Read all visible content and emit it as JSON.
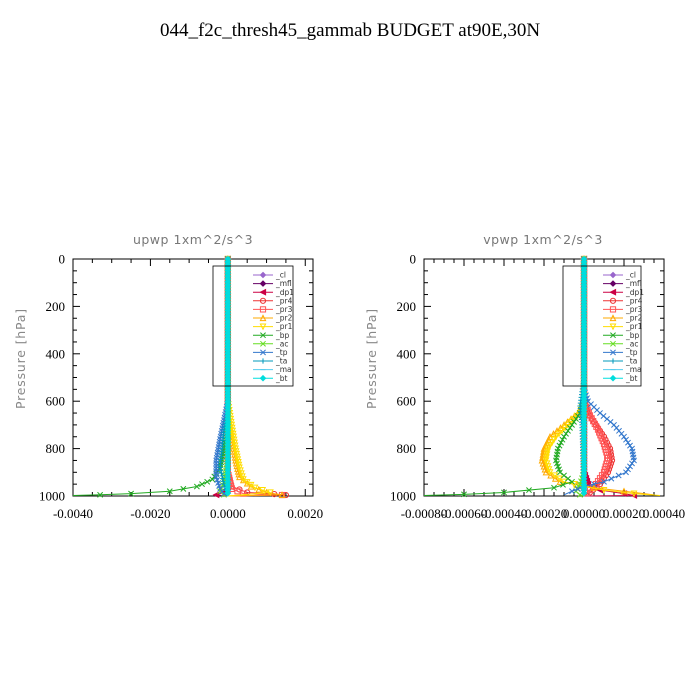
{
  "page": {
    "title": "044_f2c_thresh45_gammab  BUDGET at90E,30N"
  },
  "chart_data": [
    {
      "type": "line",
      "title": "upwp   1xm^2/s^3",
      "ylabel": "Pressure  [hPa]",
      "xlabel": "",
      "xlim": [
        -0.004,
        0.0022
      ],
      "ylim": [
        1000,
        0
      ],
      "xticks": [
        -0.004,
        -0.002,
        0.0,
        0.002
      ],
      "xtick_labels": [
        "-0.0040",
        "-0.0020",
        "0.0000",
        "0.0020"
      ],
      "yticks": [
        0,
        200,
        400,
        600,
        800,
        1000
      ],
      "ytick_labels": [
        "0",
        "200",
        "400",
        "600",
        "800",
        "1000"
      ],
      "legend_position": "top-right",
      "series": [
        {
          "name": "_cl",
          "color": "#9966cc",
          "marker": "diamond",
          "points": [
            [
              0,
              0
            ],
            [
              0,
              600
            ],
            [
              0,
              900
            ],
            [
              0,
              1000
            ]
          ]
        },
        {
          "name": "_mfl",
          "color": "#660066",
          "marker": "diamond",
          "points": [
            [
              0,
              0
            ],
            [
              0,
              600
            ],
            [
              0,
              900
            ],
            [
              0,
              1000
            ]
          ]
        },
        {
          "name": "_dp1",
          "color": "#cc0044",
          "marker": "triangle-left",
          "points": [
            [
              0,
              0
            ],
            [
              0,
              900
            ],
            [
              0,
              960
            ],
            [
              -0.0001,
              985
            ],
            [
              -0.0003,
              995
            ],
            [
              0,
              1000
            ]
          ]
        },
        {
          "name": "_pr4",
          "color": "#ee3333",
          "marker": "circle",
          "points": [
            [
              0,
              0
            ],
            [
              0,
              900
            ],
            [
              0.0001,
              960
            ],
            [
              0.0005,
              985
            ],
            [
              0.0012,
              992
            ],
            [
              0.0015,
              996
            ],
            [
              0,
              1000
            ]
          ]
        },
        {
          "name": "_pr3",
          "color": "#ff5555",
          "marker": "square",
          "points": [
            [
              0,
              0
            ],
            [
              0,
              900
            ],
            [
              0.0001,
              970
            ],
            [
              0.0004,
              990
            ],
            [
              0.0014,
              996
            ],
            [
              0,
              1000
            ]
          ]
        },
        {
          "name": "_pr2",
          "color": "#ffaa00",
          "marker": "triangle",
          "points": [
            [
              0,
              0
            ],
            [
              0,
              650
            ],
            [
              0.0001,
              750
            ],
            [
              0.0002,
              850
            ],
            [
              0.0003,
              920
            ],
            [
              0.0006,
              960
            ],
            [
              0.001,
              985
            ],
            [
              0.0014,
              995
            ],
            [
              0,
              1000
            ]
          ]
        },
        {
          "name": "_pr1",
          "color": "#ffdd00",
          "marker": "triangle-down",
          "points": [
            [
              0,
              0
            ],
            [
              0,
              600
            ],
            [
              0.0001,
              700
            ],
            [
              0.0002,
              800
            ],
            [
              0.0003,
              880
            ],
            [
              0.0004,
              930
            ],
            [
              0.0007,
              965
            ],
            [
              0.0011,
              985
            ],
            [
              0,
              1000
            ]
          ]
        },
        {
          "name": "_bp",
          "color": "#22aa22",
          "marker": "x",
          "points": [
            [
              0,
              0
            ],
            [
              0,
              700
            ],
            [
              -0.0001,
              800
            ],
            [
              -0.0002,
              880
            ],
            [
              -0.0004,
              930
            ],
            [
              -0.0008,
              960
            ],
            [
              -0.0015,
              980
            ],
            [
              -0.0025,
              990
            ],
            [
              -0.0033,
              995
            ],
            [
              -0.004,
              998
            ]
          ]
        },
        {
          "name": "_ac",
          "color": "#66dd22",
          "marker": "x",
          "points": [
            [
              0,
              0
            ],
            [
              0,
              850
            ],
            [
              -0.0001,
              940
            ],
            [
              -0.0002,
              980
            ],
            [
              -0.0001,
              995
            ],
            [
              0,
              1000
            ]
          ]
        },
        {
          "name": "_tp",
          "color": "#3377cc",
          "marker": "x",
          "points": [
            [
              0,
              0
            ],
            [
              0,
              600
            ],
            [
              -0.0001,
              680
            ],
            [
              -0.0002,
              760
            ],
            [
              -0.0003,
              850
            ],
            [
              -0.0003,
              920
            ],
            [
              -0.0002,
              970
            ],
            [
              -0.0001,
              990
            ],
            [
              0,
              1000
            ]
          ]
        },
        {
          "name": "_ta",
          "color": "#0099bb",
          "marker": "plus",
          "points": [
            [
              0,
              0
            ],
            [
              0,
              650
            ],
            [
              -0.0001,
              720
            ],
            [
              -0.00015,
              800
            ],
            [
              -0.0002,
              880
            ],
            [
              -0.0001,
              950
            ],
            [
              0,
              1000
            ]
          ]
        },
        {
          "name": "_ma",
          "color": "#55ccee",
          "marker": "dash",
          "points": [
            [
              0,
              0
            ],
            [
              0,
              1000
            ]
          ]
        },
        {
          "name": "_bt",
          "color": "#00dddd",
          "marker": "diamond",
          "points": [
            [
              0,
              0
            ],
            [
              0,
              1000
            ]
          ]
        }
      ]
    },
    {
      "type": "line",
      "title": "vpwp   1xm^2/s^3",
      "ylabel": "Pressure  [hPa]",
      "xlabel": "",
      "xlim": [
        -0.0008,
        0.0004
      ],
      "ylim": [
        1000,
        0
      ],
      "xticks": [
        -0.0008,
        -0.0006,
        -0.0004,
        -0.0002,
        0.0,
        0.0002,
        0.0004
      ],
      "xtick_labels": [
        "-0.00080",
        "-0.00060",
        "-0.00040",
        "-0.00020",
        "0.00000",
        "0.00020",
        "0.00040"
      ],
      "yticks": [
        0,
        200,
        400,
        600,
        800,
        1000
      ],
      "ytick_labels": [
        "0",
        "200",
        "400",
        "600",
        "800",
        "1000"
      ],
      "legend_position": "top-right",
      "series": [
        {
          "name": "_cl",
          "color": "#9966cc",
          "marker": "diamond",
          "points": [
            [
              0,
              0
            ],
            [
              0,
              600
            ],
            [
              0,
              950
            ],
            [
              0,
              1000
            ]
          ]
        },
        {
          "name": "_mfl",
          "color": "#660066",
          "marker": "diamond",
          "points": [
            [
              0,
              0
            ],
            [
              0,
              600
            ],
            [
              0,
              950
            ],
            [
              0,
              1000
            ]
          ]
        },
        {
          "name": "_dp1",
          "color": "#cc0044",
          "marker": "triangle-left",
          "points": [
            [
              0,
              0
            ],
            [
              0,
              900
            ],
            [
              2e-05,
              950
            ],
            [
              8e-05,
              975
            ],
            [
              0.0002,
              990
            ],
            [
              0.00025,
              998
            ],
            [
              0,
              1000
            ]
          ]
        },
        {
          "name": "_pr4",
          "color": "#ee3333",
          "marker": "circle",
          "points": [
            [
              0,
              0
            ],
            [
              0,
              600
            ],
            [
              2e-05,
              650
            ],
            [
              6e-05,
              700
            ],
            [
              0.0001,
              750
            ],
            [
              0.00013,
              800
            ],
            [
              0.00014,
              850
            ],
            [
              0.00012,
              900
            ],
            [
              8e-05,
              950
            ],
            [
              3e-05,
              985
            ],
            [
              0,
              1000
            ]
          ]
        },
        {
          "name": "_pr3",
          "color": "#ff5555",
          "marker": "square",
          "points": [
            [
              0,
              0
            ],
            [
              0,
              600
            ],
            [
              3e-05,
              660
            ],
            [
              7e-05,
              720
            ],
            [
              0.0001,
              780
            ],
            [
              0.00012,
              840
            ],
            [
              0.0001,
              900
            ],
            [
              6e-05,
              950
            ],
            [
              0,
              1000
            ]
          ]
        },
        {
          "name": "_pr2",
          "color": "#ffaa00",
          "marker": "triangle",
          "points": [
            [
              0,
              0
            ],
            [
              0,
              600
            ],
            [
              -3e-05,
              650
            ],
            [
              -0.0001,
              700
            ],
            [
              -0.00017,
              750
            ],
            [
              -0.0002,
              800
            ],
            [
              -0.00021,
              850
            ],
            [
              -0.00019,
              900
            ],
            [
              -0.00012,
              940
            ],
            [
              5e-05,
              965
            ],
            [
              0.0002,
              980
            ],
            [
              0.00035,
              995
            ]
          ]
        },
        {
          "name": "_pr1",
          "color": "#ffdd00",
          "marker": "triangle-down",
          "points": [
            [
              0,
              0
            ],
            [
              0,
              600
            ],
            [
              -2e-05,
              650
            ],
            [
              -8e-05,
              700
            ],
            [
              -0.00014,
              750
            ],
            [
              -0.00018,
              800
            ],
            [
              -0.00019,
              850
            ],
            [
              -0.00017,
              900
            ],
            [
              -0.0001,
              940
            ],
            [
              0,
              960
            ],
            [
              0.0001,
              975
            ],
            [
              0.00025,
              990
            ],
            [
              0.00038,
              998
            ]
          ]
        },
        {
          "name": "_bp",
          "color": "#22aa22",
          "marker": "x",
          "points": [
            [
              0,
              0
            ],
            [
              0,
              600
            ],
            [
              -2e-05,
              650
            ],
            [
              -6e-05,
              700
            ],
            [
              -0.0001,
              750
            ],
            [
              -0.00013,
              800
            ],
            [
              -0.00014,
              850
            ],
            [
              -0.00012,
              900
            ],
            [
              -6e-05,
              940
            ],
            [
              -0.00015,
              965
            ],
            [
              -0.0004,
              985
            ],
            [
              -0.0006,
              993
            ],
            [
              -0.0008,
              998
            ]
          ]
        },
        {
          "name": "_ac",
          "color": "#66dd22",
          "marker": "x",
          "points": [
            [
              0,
              0
            ],
            [
              0,
              900
            ],
            [
              -2e-05,
              950
            ],
            [
              -4e-05,
              980
            ],
            [
              -2e-05,
              995
            ],
            [
              0,
              1000
            ]
          ]
        },
        {
          "name": "_tp",
          "color": "#3377cc",
          "marker": "x",
          "points": [
            [
              0,
              0
            ],
            [
              0,
              550
            ],
            [
              2e-05,
              600
            ],
            [
              8e-05,
              650
            ],
            [
              0.00015,
              700
            ],
            [
              0.0002,
              750
            ],
            [
              0.00024,
              800
            ],
            [
              0.00025,
              850
            ],
            [
              0.00021,
              900
            ],
            [
              0.0001,
              940
            ],
            [
              0,
              960
            ],
            [
              -6e-05,
              980
            ],
            [
              -0.0001,
              995
            ]
          ]
        },
        {
          "name": "_ta",
          "color": "#0099bb",
          "marker": "plus",
          "points": [
            [
              0,
              0
            ],
            [
              0,
              500
            ],
            [
              -1e-05,
              560
            ],
            [
              -2e-05,
              620
            ],
            [
              -1e-05,
              700
            ],
            [
              0,
              1000
            ]
          ]
        },
        {
          "name": "_ma",
          "color": "#55ccee",
          "marker": "dash",
          "points": [
            [
              0,
              0
            ],
            [
              0,
              1000
            ]
          ]
        },
        {
          "name": "_bt",
          "color": "#00dddd",
          "marker": "diamond",
          "points": [
            [
              0,
              0
            ],
            [
              0,
              1000
            ]
          ]
        }
      ]
    }
  ]
}
